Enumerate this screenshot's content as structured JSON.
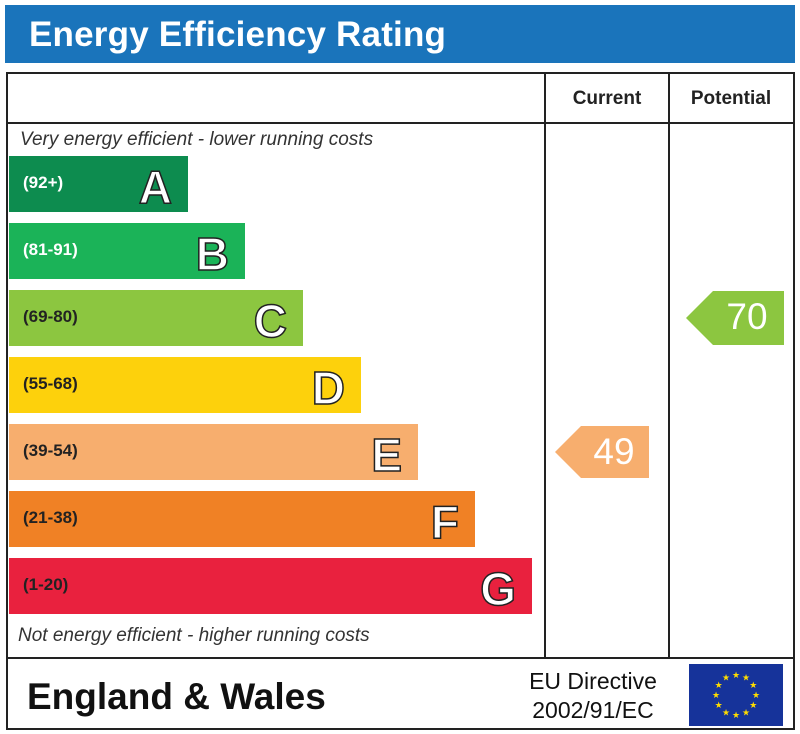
{
  "header": {
    "title": "Energy Efficiency Rating"
  },
  "columns": {
    "current": "Current",
    "potential": "Potential"
  },
  "notes": {
    "top": "Very energy efficient - lower running costs",
    "bottom": "Not energy efficient - higher running costs"
  },
  "chart_data": {
    "type": "bar",
    "categories": [
      "A",
      "B",
      "C",
      "D",
      "E",
      "F",
      "G"
    ],
    "ranges": [
      "(92+)",
      "(81-91)",
      "(69-80)",
      "(55-68)",
      "(39-54)",
      "(21-38)",
      "(1-20)"
    ],
    "colors": [
      "#0d8c4f",
      "#1bb358",
      "#8cc640",
      "#fdd10c",
      "#f7ae6e",
      "#f08125",
      "#e9213e"
    ],
    "current": {
      "value": 49,
      "band": "E",
      "color": "#f7ae6e"
    },
    "potential": {
      "value": 70,
      "band": "C",
      "color": "#8cc640"
    }
  },
  "footer": {
    "region": "England & Wales",
    "directive_line1": "EU Directive",
    "directive_line2": "2002/91/EC"
  }
}
